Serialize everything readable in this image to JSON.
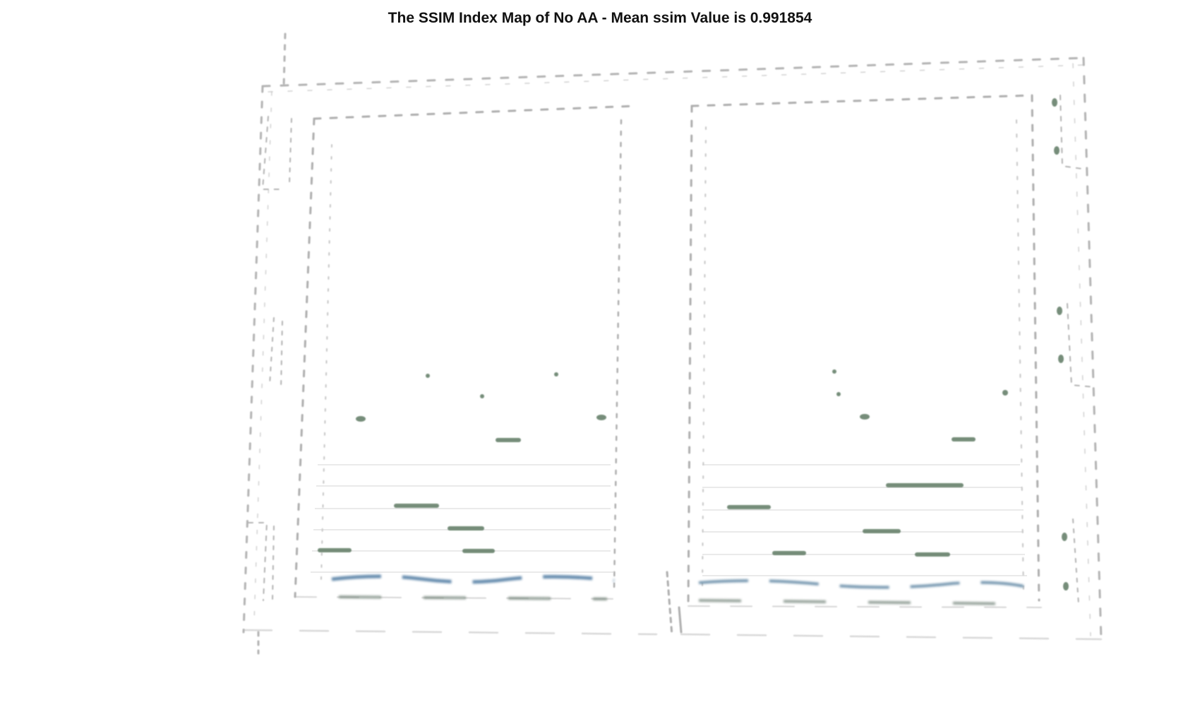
{
  "figure": {
    "title": "The SSIM Index Map of No AA - Mean ssim Value is 0.991854"
  },
  "ssim_map": {
    "subject": "two-door cabinet outline",
    "colors": {
      "background": "#ffffff",
      "edge_gray": "#9a9a9a",
      "artifact_green": "#5f7a63",
      "artifact_blue": "#3f6f9a"
    }
  }
}
